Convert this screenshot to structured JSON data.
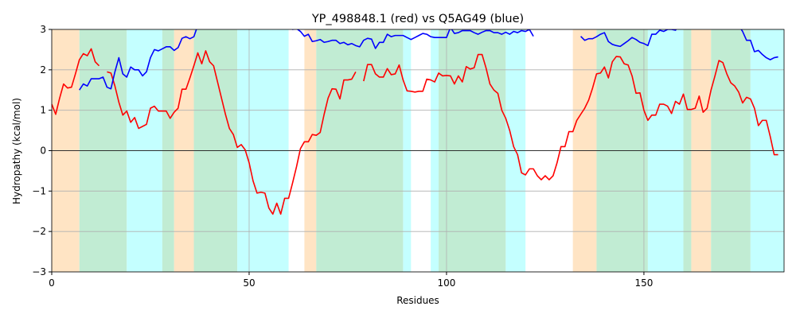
{
  "chart_data": {
    "type": "line",
    "title": "YP_498848.1 (red) vs Q5AG49 (blue)",
    "xlabel": "Residues",
    "ylabel": "Hydropathy (kcal/mol)",
    "xlim": [
      0,
      185.5
    ],
    "ylim": [
      -3,
      3
    ],
    "xticks": [
      0,
      50,
      100,
      150
    ],
    "yticks": [
      {
        "value": -3,
        "label": "−3"
      },
      {
        "value": -2,
        "label": "−2"
      },
      {
        "value": -1,
        "label": "−1"
      },
      0,
      1,
      2,
      3
    ],
    "grid": true,
    "zero_line": true,
    "regions": [
      {
        "start": 0,
        "end": 7,
        "color": "#ffe4c4"
      },
      {
        "start": 7,
        "end": 19,
        "color": "#c1ecd3"
      },
      {
        "start": 19,
        "end": 28,
        "color": "#c4ffff"
      },
      {
        "start": 28,
        "end": 31,
        "color": "#c1ecd3"
      },
      {
        "start": 31,
        "end": 36,
        "color": "#ffe4c4"
      },
      {
        "start": 36,
        "end": 47,
        "color": "#c1ecd3"
      },
      {
        "start": 47,
        "end": 60,
        "color": "#c4ffff"
      },
      {
        "start": 64,
        "end": 67,
        "color": "#ffe4c4"
      },
      {
        "start": 67,
        "end": 89,
        "color": "#c1ecd3"
      },
      {
        "start": 89,
        "end": 91,
        "color": "#c4ffff"
      },
      {
        "start": 96,
        "end": 98,
        "color": "#c4ffff"
      },
      {
        "start": 98,
        "end": 115,
        "color": "#c1ecd3"
      },
      {
        "start": 115,
        "end": 120,
        "color": "#c4ffff"
      },
      {
        "start": 132,
        "end": 138,
        "color": "#ffe4c4"
      },
      {
        "start": 138,
        "end": 151,
        "color": "#c1ecd3"
      },
      {
        "start": 151,
        "end": 160,
        "color": "#c4ffff"
      },
      {
        "start": 160,
        "end": 162,
        "color": "#c1ecd3"
      },
      {
        "start": 162,
        "end": 167,
        "color": "#ffe4c4"
      },
      {
        "start": 167,
        "end": 177,
        "color": "#c1ecd3"
      },
      {
        "start": 177,
        "end": 185.5,
        "color": "#c4ffff"
      }
    ],
    "x": [
      0,
      1,
      2,
      3,
      4,
      5,
      6,
      7,
      8,
      9,
      10,
      11,
      12,
      13,
      14,
      15,
      16,
      17,
      18,
      19,
      20,
      21,
      22,
      23,
      24,
      25,
      26,
      27,
      28,
      29,
      30,
      31,
      32,
      33,
      34,
      35,
      36,
      37,
      38,
      39,
      40,
      41,
      42,
      43,
      44,
      45,
      46,
      47,
      48,
      49,
      50,
      51,
      52,
      53,
      54,
      55,
      56,
      57,
      58,
      59,
      60,
      61,
      62,
      63,
      64,
      65,
      66,
      67,
      68,
      69,
      70,
      71,
      72,
      73,
      74,
      75,
      76,
      77,
      78,
      79,
      80,
      81,
      82,
      83,
      84,
      85,
      86,
      87,
      88,
      89,
      90,
      91,
      92,
      93,
      94,
      95,
      96,
      97,
      98,
      99,
      100,
      101,
      102,
      103,
      104,
      105,
      106,
      107,
      108,
      109,
      110,
      111,
      112,
      113,
      114,
      115,
      116,
      117,
      118,
      119,
      120,
      121,
      122,
      123,
      124,
      125,
      126,
      127,
      128,
      129,
      130,
      131,
      132,
      133,
      134,
      135,
      136,
      137,
      138,
      139,
      140,
      141,
      142,
      143,
      144,
      145,
      146,
      147,
      148,
      149,
      150,
      151,
      152,
      153,
      154,
      155,
      156,
      157,
      158,
      159,
      160,
      161,
      162,
      163,
      164,
      165,
      166,
      167,
      168,
      169,
      170,
      171,
      172,
      173,
      174,
      175,
      176,
      177,
      178,
      179,
      180,
      181,
      182,
      183,
      184
    ],
    "series": [
      {
        "color": "red",
        "values": [
          1.15,
          0.9,
          1.3,
          1.65,
          1.55,
          1.57,
          1.9,
          2.25,
          2.4,
          2.35,
          2.52,
          2.2,
          2.1,
          null,
          1.95,
          1.92,
          1.6,
          1.2,
          0.88,
          0.98,
          0.7,
          0.82,
          0.55,
          0.6,
          0.65,
          1.05,
          1.1,
          0.98,
          0.98,
          0.98,
          0.8,
          0.95,
          1.05,
          1.52,
          1.52,
          1.8,
          2.1,
          2.42,
          2.15,
          2.47,
          2.2,
          2.1,
          1.7,
          1.3,
          0.9,
          0.55,
          0.4,
          0.08,
          0.15,
          0.02,
          -0.3,
          -0.75,
          -1.05,
          -1.03,
          -1.05,
          -1.42,
          -1.57,
          -1.3,
          -1.57,
          -1.18,
          -1.18,
          -0.8,
          -0.4,
          0.05,
          0.22,
          0.22,
          0.4,
          0.38,
          0.45,
          0.9,
          1.3,
          1.53,
          1.52,
          1.28,
          1.75,
          1.75,
          1.77,
          1.95,
          null,
          1.72,
          2.13,
          2.13,
          1.9,
          1.82,
          1.82,
          2.03,
          1.88,
          1.9,
          2.12,
          1.75,
          1.48,
          1.47,
          1.45,
          1.47,
          1.47,
          1.77,
          1.75,
          1.7,
          1.92,
          1.85,
          1.86,
          1.85,
          1.65,
          1.85,
          1.7,
          2.08,
          2.02,
          2.05,
          2.38,
          2.38,
          2.05,
          1.65,
          1.5,
          1.42,
          1.0,
          0.8,
          0.5,
          0.1,
          -0.1,
          -0.55,
          -0.6,
          -0.45,
          -0.45,
          -0.62,
          -0.72,
          -0.62,
          -0.72,
          -0.62,
          -0.3,
          0.1,
          0.1,
          0.47,
          0.47,
          0.75,
          0.9,
          1.05,
          1.25,
          1.55,
          1.9,
          1.92,
          2.07,
          1.8,
          2.2,
          2.33,
          2.32,
          2.15,
          2.12,
          1.85,
          1.42,
          1.43,
          1.0,
          0.75,
          0.88,
          0.88,
          1.15,
          1.15,
          1.1,
          0.92,
          1.22,
          1.15,
          1.4,
          1.02,
          1.02,
          1.05,
          1.35,
          0.95,
          1.05,
          1.5,
          1.85,
          2.23,
          2.18,
          1.9,
          1.68,
          1.6,
          1.45,
          1.18,
          1.32,
          1.28,
          1.05,
          0.62,
          0.75,
          0.75,
          0.35,
          -0.1,
          -0.1
        ]
      },
      {
        "color": "blue",
        "values": [
          null,
          null,
          null,
          null,
          null,
          null,
          null,
          1.5,
          1.65,
          1.6,
          1.78,
          1.78,
          1.78,
          1.82,
          1.57,
          1.53,
          1.95,
          2.3,
          1.9,
          1.82,
          2.07,
          2.0,
          2.0,
          1.85,
          1.95,
          2.3,
          2.5,
          2.47,
          2.52,
          2.57,
          2.57,
          2.48,
          2.55,
          2.78,
          2.82,
          2.77,
          2.82,
          3.1,
          null,
          null,
          null,
          null,
          null,
          null,
          null,
          null,
          null,
          null,
          null,
          null,
          null,
          null,
          null,
          null,
          null,
          null,
          null,
          null,
          null,
          null,
          3.1,
          3.0,
          3.02,
          2.95,
          2.83,
          2.88,
          2.7,
          2.72,
          2.75,
          2.68,
          2.7,
          2.73,
          2.73,
          2.65,
          2.68,
          2.62,
          2.65,
          2.6,
          2.57,
          2.73,
          2.78,
          2.76,
          2.53,
          2.68,
          2.68,
          2.88,
          2.82,
          2.85,
          2.85,
          2.85,
          2.8,
          2.75,
          2.8,
          2.85,
          2.9,
          2.88,
          2.82,
          2.8,
          2.8,
          2.8,
          2.8,
          3.05,
          2.9,
          2.92,
          2.97,
          2.97,
          2.97,
          2.92,
          2.88,
          2.93,
          2.97,
          2.97,
          2.92,
          2.92,
          2.88,
          2.93,
          2.88,
          2.95,
          2.92,
          2.97,
          2.95,
          3.0,
          2.83,
          null,
          null,
          null,
          null,
          null,
          null,
          null,
          null,
          null,
          null,
          null,
          2.83,
          2.73,
          2.77,
          2.77,
          2.82,
          2.88,
          2.92,
          2.7,
          2.63,
          2.6,
          2.58,
          2.65,
          2.72,
          2.8,
          2.75,
          2.68,
          2.65,
          2.6,
          2.88,
          2.88,
          2.98,
          2.95,
          3.0,
          3.0,
          2.98,
          3.1,
          null,
          null,
          null,
          null,
          null,
          null,
          null,
          null,
          null,
          null,
          null,
          null,
          null,
          null,
          3.1,
          2.95,
          2.73,
          2.73,
          2.45,
          2.48,
          2.38,
          2.3,
          2.25,
          2.3,
          2.32
        ]
      }
    ]
  }
}
